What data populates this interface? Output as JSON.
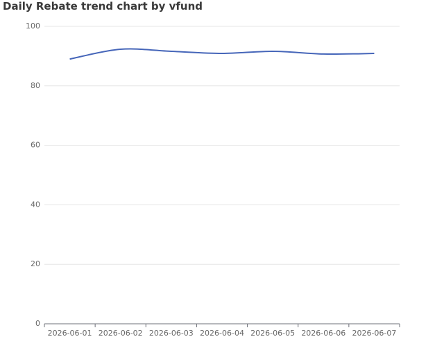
{
  "chart_data": {
    "type": "line",
    "title": "Daily Rebate trend chart by vfund",
    "categories": [
      "2026-06-01",
      "2026-06-02",
      "2026-06-03",
      "2026-06-04",
      "2026-06-05",
      "2026-06-06",
      "2026-06-07"
    ],
    "values": [
      89.0,
      92.3,
      91.6,
      90.9,
      91.6,
      90.7,
      90.9
    ],
    "color": "#4666b9",
    "smooth": true,
    "ylim": [
      0,
      100
    ],
    "yticks": [
      0,
      20,
      40,
      60,
      80,
      100
    ],
    "grid": true
  }
}
